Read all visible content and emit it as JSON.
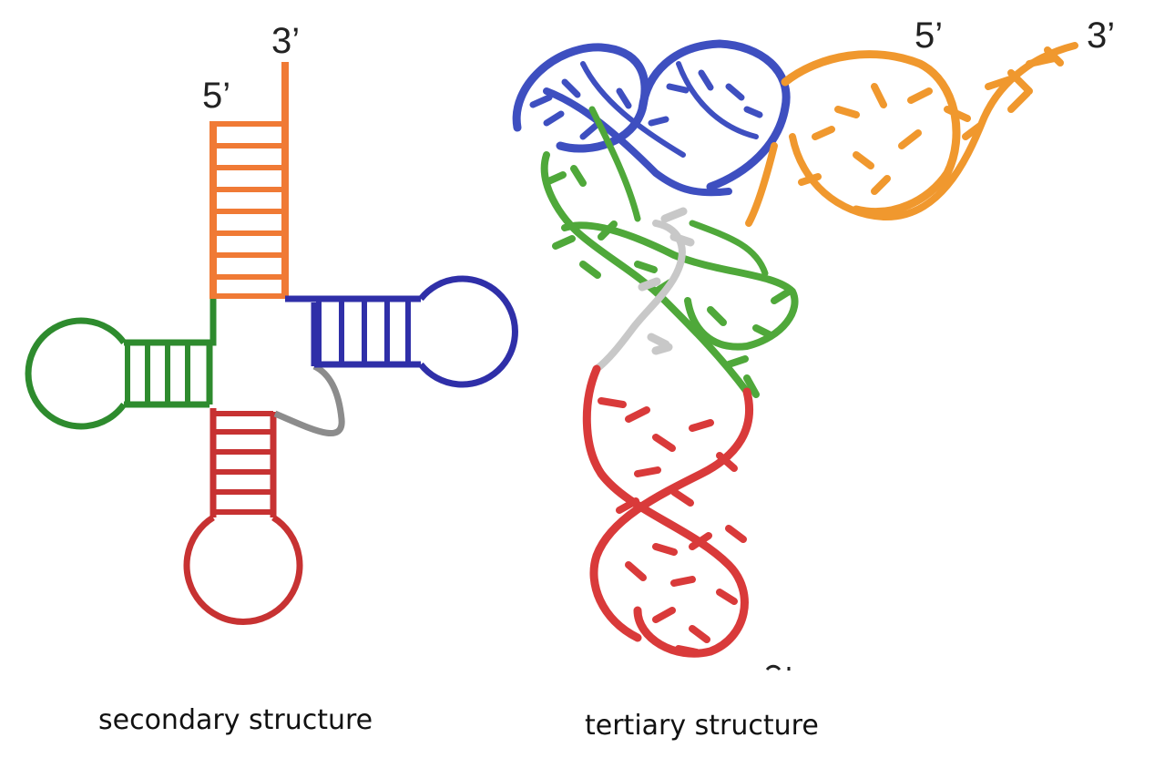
{
  "secondary": {
    "label_5prime": "5’",
    "label_3prime": "3’",
    "caption": "secondary structure"
  },
  "tertiary": {
    "label_5prime": "5’",
    "label_3prime": "3’",
    "caption": "tertiary structure"
  },
  "colors": {
    "acceptor_stem": "#f07a35",
    "d_arm": "#2e8b2e",
    "anticodon_arm": "#c73232",
    "t_arm": "#2f2fa8",
    "variable_loop": "#8c8c8c",
    "acceptor_3d": "#f0982e",
    "d_arm_3d": "#4fa83a",
    "anticodon_3d": "#d93a3a",
    "t_arm_3d": "#3e4fc0",
    "variable_3d": "#c8c8c8"
  }
}
